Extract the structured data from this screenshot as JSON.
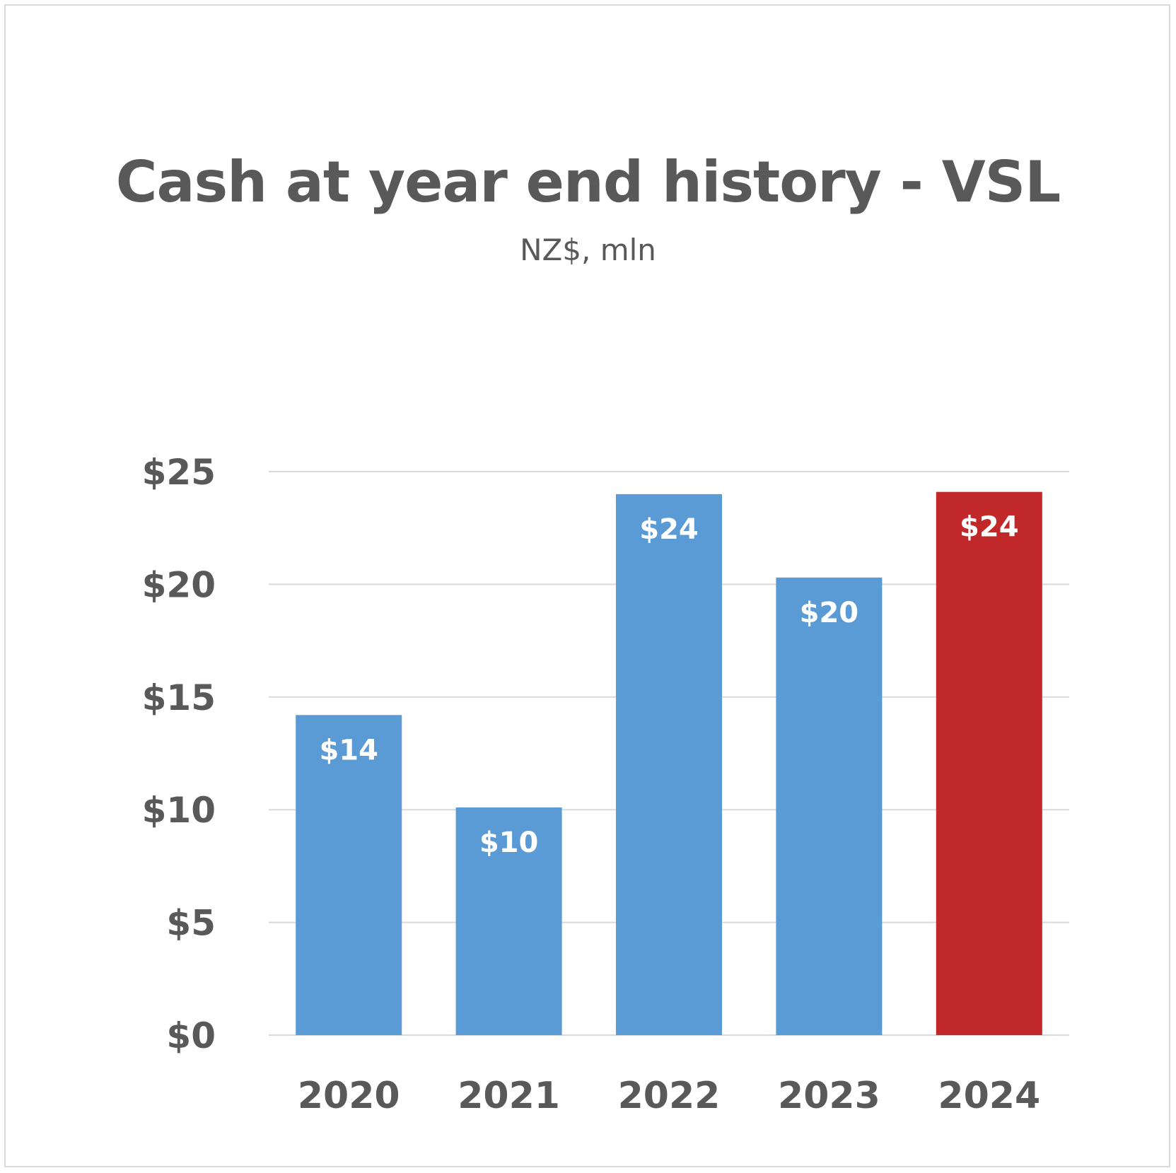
{
  "chart_data": {
    "type": "bar",
    "title": "Cash at year end history - VSL",
    "subtitle": "NZ$, mln",
    "xlabel": "",
    "ylabel": "",
    "categories": [
      "2020",
      "2021",
      "2022",
      "2023",
      "2024"
    ],
    "values": [
      14.2,
      10.1,
      24.0,
      20.3,
      24.1
    ],
    "data_labels": [
      "$14",
      "$10",
      "$24",
      "$20",
      "$24"
    ],
    "ylim": [
      0,
      25
    ],
    "y_ticks": [
      0,
      5,
      10,
      15,
      20,
      25
    ],
    "y_tick_labels": [
      "$0",
      "$5",
      "$10",
      "$15",
      "$20",
      "$25"
    ],
    "grid": true,
    "legend": "none",
    "colors": {
      "default_bar": "#5b9bd5",
      "highlight_bar": "#c0282a",
      "highlight_category": "2024",
      "gridline": "#d9d9d9",
      "text": "#595959",
      "data_label": "#ffffff"
    }
  }
}
